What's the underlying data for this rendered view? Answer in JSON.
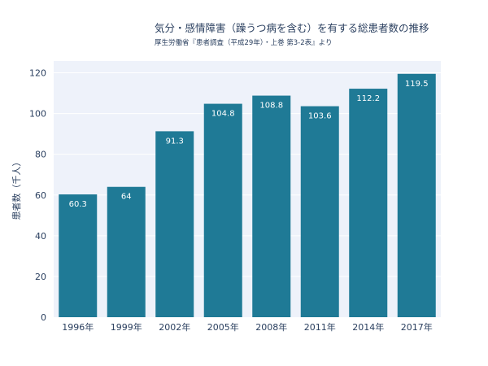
{
  "chart_data": {
    "type": "bar",
    "title": "気分・感情障害（躁うつ病を含む）を有する総患者数の推移",
    "subtitle": "厚生労働省『患者調査（平成29年）・上巻 第3-2表』より",
    "xlabel": "",
    "ylabel": "患者数（千人）",
    "categories": [
      "1996年",
      "1999年",
      "2002年",
      "2005年",
      "2008年",
      "2011年",
      "2014年",
      "2017年"
    ],
    "values": [
      60.3,
      64,
      91.3,
      104.8,
      108.8,
      103.6,
      112.2,
      119.5
    ],
    "data_labels": [
      "60.3",
      "64",
      "91.3",
      "104.8",
      "108.8",
      "103.6",
      "112.2",
      "119.5"
    ],
    "ylim": [
      0,
      125.8
    ],
    "yticks": [
      0,
      20,
      40,
      60,
      80,
      100,
      120
    ],
    "grid": true,
    "legend": "none",
    "colors": {
      "bar": "#1f7a96",
      "plot_bg": "#eef2fa",
      "grid": "#ffffff",
      "text": "#2a3f5f"
    }
  }
}
